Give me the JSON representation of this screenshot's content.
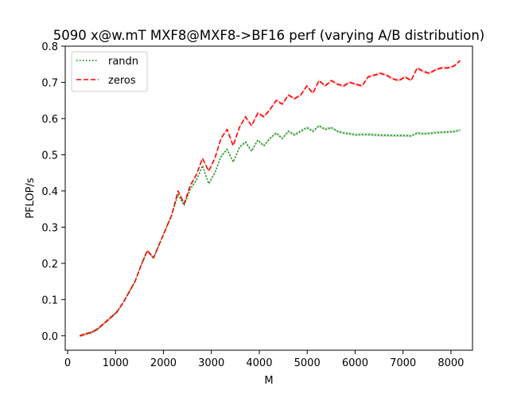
{
  "chart_data": {
    "type": "line",
    "title": "5090 x@w.mT MXF8@MXF8->BF16 perf (varying A/B distribution)",
    "xlabel": "M",
    "ylabel": "PFLOP/s",
    "xlim": [
      -50,
      8450
    ],
    "ylim": [
      -0.04,
      0.8
    ],
    "xticks": [
      0,
      1000,
      2000,
      3000,
      4000,
      5000,
      6000,
      7000,
      8000
    ],
    "yticks": [
      0.0,
      0.1,
      0.2,
      0.3,
      0.4,
      0.5,
      0.6,
      0.7,
      0.8
    ],
    "x_tick_labels": [
      "0",
      "1000",
      "2000",
      "3000",
      "4000",
      "5000",
      "6000",
      "7000",
      "8000"
    ],
    "y_tick_labels": [
      "0.0",
      "0.1",
      "0.2",
      "0.3",
      "0.4",
      "0.5",
      "0.6",
      "0.7",
      "0.8"
    ],
    "legend_position": "top-left",
    "series": [
      {
        "name": "randn",
        "color": "#008000",
        "style": "dotted",
        "x": [
          256,
          384,
          512,
          640,
          768,
          896,
          1024,
          1152,
          1280,
          1408,
          1536,
          1664,
          1792,
          1920,
          2048,
          2176,
          2304,
          2432,
          2560,
          2688,
          2816,
          2944,
          3072,
          3200,
          3328,
          3456,
          3584,
          3712,
          3840,
          3968,
          4096,
          4224,
          4352,
          4480,
          4608,
          4736,
          4864,
          4992,
          5120,
          5248,
          5376,
          5504,
          5632,
          5760,
          5888,
          6016,
          6144,
          6272,
          6400,
          6528,
          6656,
          6784,
          6912,
          7040,
          7168,
          7296,
          7424,
          7552,
          7680,
          7808,
          7936,
          8064,
          8192
        ],
        "y": [
          0.0,
          0.005,
          0.01,
          0.02,
          0.035,
          0.05,
          0.065,
          0.09,
          0.12,
          0.15,
          0.195,
          0.235,
          0.215,
          0.255,
          0.295,
          0.335,
          0.39,
          0.36,
          0.405,
          0.43,
          0.47,
          0.42,
          0.45,
          0.495,
          0.515,
          0.48,
          0.52,
          0.535,
          0.51,
          0.54,
          0.525,
          0.545,
          0.56,
          0.545,
          0.565,
          0.555,
          0.565,
          0.575,
          0.565,
          0.58,
          0.57,
          0.575,
          0.565,
          0.56,
          0.558,
          0.555,
          0.556,
          0.556,
          0.555,
          0.554,
          0.554,
          0.553,
          0.553,
          0.553,
          0.552,
          0.56,
          0.558,
          0.559,
          0.561,
          0.562,
          0.563,
          0.564,
          0.568
        ]
      },
      {
        "name": "zeros",
        "color": "#ff0000",
        "style": "dashed",
        "x": [
          256,
          384,
          512,
          640,
          768,
          896,
          1024,
          1152,
          1280,
          1408,
          1536,
          1664,
          1792,
          1920,
          2048,
          2176,
          2304,
          2432,
          2560,
          2688,
          2816,
          2944,
          3072,
          3200,
          3328,
          3456,
          3584,
          3712,
          3840,
          3968,
          4096,
          4224,
          4352,
          4480,
          4608,
          4736,
          4864,
          4992,
          5120,
          5248,
          5376,
          5504,
          5632,
          5760,
          5888,
          6016,
          6144,
          6272,
          6400,
          6528,
          6656,
          6784,
          6912,
          7040,
          7168,
          7296,
          7424,
          7552,
          7680,
          7808,
          7936,
          8064,
          8192
        ],
        "y": [
          0.0,
          0.005,
          0.01,
          0.02,
          0.035,
          0.05,
          0.065,
          0.09,
          0.12,
          0.15,
          0.195,
          0.235,
          0.215,
          0.255,
          0.295,
          0.335,
          0.4,
          0.365,
          0.415,
          0.445,
          0.49,
          0.455,
          0.49,
          0.545,
          0.57,
          0.525,
          0.575,
          0.605,
          0.58,
          0.615,
          0.605,
          0.625,
          0.65,
          0.64,
          0.665,
          0.655,
          0.665,
          0.69,
          0.67,
          0.705,
          0.69,
          0.705,
          0.695,
          0.69,
          0.7,
          0.695,
          0.69,
          0.715,
          0.72,
          0.725,
          0.72,
          0.71,
          0.705,
          0.715,
          0.705,
          0.74,
          0.73,
          0.725,
          0.735,
          0.74,
          0.74,
          0.745,
          0.76
        ]
      }
    ]
  }
}
